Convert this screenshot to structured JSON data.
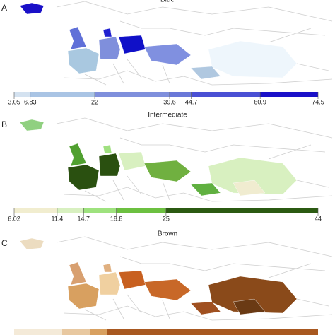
{
  "panels": [
    {
      "letter": "A",
      "title": "Blue",
      "scale": {
        "lim": [
          3.05,
          74.5
        ],
        "ticks": [
          3.05,
          6.83,
          22,
          39.6,
          44.7,
          60.9,
          74.5
        ],
        "colors": [
          "#d4e2f0",
          "#a9c4e4",
          "#7f8fdc",
          "#6a78d8",
          "#4a50d4",
          "#1a10c8"
        ]
      }
    },
    {
      "letter": "B",
      "title": "Intermediate",
      "scale": {
        "lim": [
          6.02,
          44
        ],
        "ticks": [
          6.02,
          11.4,
          14.7,
          18.8,
          25,
          44
        ],
        "colors": [
          "#f1edcf",
          "#d8f0c0",
          "#9ee27e",
          "#6cc040",
          "#2b5a12"
        ]
      }
    },
    {
      "letter": "C",
      "title": "Brown"
    }
  ]
}
